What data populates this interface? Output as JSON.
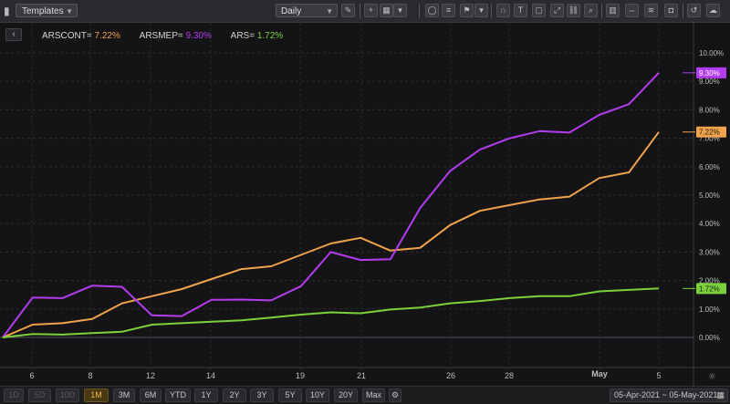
{
  "toolbar": {
    "templates_label": "Templates",
    "interval_label": "Daily",
    "tool_icons": [
      "pencil-icon",
      "crosshair-icon",
      "grid-icon",
      "chevron-down-icon",
      "circle-icon",
      "fib-icon",
      "flag-icon",
      "chevron-down-icon",
      "magnet-icon",
      "text-icon",
      "rect-icon",
      "expand-icon",
      "link-icon",
      "zoom-icon",
      "bar-chart-icon",
      "fit-icon",
      "indicator-icon",
      "camera-icon",
      "undo-icon",
      "cloud-icon"
    ]
  },
  "legend": [
    {
      "label": "ARSCONT=",
      "value": "7.22%",
      "color": "#f0a24a"
    },
    {
      "label": "ARSMEP=",
      "value": "9.30%",
      "color": "#b43cf0"
    },
    {
      "label": "ARS=",
      "value": "1.72%",
      "color": "#7ad13a"
    }
  ],
  "chart_data": {
    "type": "line",
    "x_ticks": [
      "6",
      "8",
      "12",
      "14",
      "19",
      "21",
      "26",
      "28",
      "May",
      "5"
    ],
    "y_ticks": [
      "0.00%",
      "1.00%",
      "2.00%",
      "3.00%",
      "4.00%",
      "5.00%",
      "6.00%",
      "7.00%",
      "8.00%",
      "9.00%",
      "10.00%"
    ],
    "ylim": [
      -0.5,
      10.5
    ],
    "series": [
      {
        "name": "ARSCONT=",
        "color": "#f0a24a",
        "last_label": "7.22%",
        "values": [
          0.0,
          0.45,
          0.5,
          0.65,
          1.2,
          1.45,
          1.7,
          2.05,
          2.4,
          2.5,
          2.9,
          3.3,
          3.5,
          3.05,
          3.15,
          3.95,
          4.45,
          4.65,
          4.85,
          4.95,
          5.6,
          5.8,
          7.22
        ]
      },
      {
        "name": "ARSMEP=",
        "color": "#b43cf0",
        "last_label": "9.30%",
        "values": [
          0.0,
          1.4,
          1.38,
          1.82,
          1.78,
          0.78,
          0.75,
          1.32,
          1.33,
          1.3,
          1.8,
          3.0,
          2.72,
          2.75,
          4.55,
          5.85,
          6.6,
          7.0,
          7.25,
          7.2,
          7.82,
          8.2,
          9.3
        ]
      },
      {
        "name": "ARS=",
        "color": "#7ad13a",
        "last_label": "1.72%",
        "values": [
          0.0,
          0.12,
          0.1,
          0.15,
          0.2,
          0.45,
          0.5,
          0.55,
          0.6,
          0.7,
          0.8,
          0.88,
          0.85,
          0.98,
          1.05,
          1.2,
          1.28,
          1.38,
          1.45,
          1.45,
          1.62,
          1.67,
          1.72
        ]
      }
    ]
  },
  "range_buttons": [
    {
      "label": "1D",
      "state": "disabled"
    },
    {
      "label": "5D",
      "state": "disabled"
    },
    {
      "label": "10D",
      "state": "disabled"
    },
    {
      "label": "1M",
      "state": "active"
    },
    {
      "label": "3M",
      "state": "normal"
    },
    {
      "label": "6M",
      "state": "normal"
    },
    {
      "label": "YTD",
      "state": "normal"
    },
    {
      "label": "1Y",
      "state": "normal"
    },
    {
      "label": "2Y",
      "state": "normal"
    },
    {
      "label": "3Y",
      "state": "normal"
    },
    {
      "label": "5Y",
      "state": "normal"
    },
    {
      "label": "10Y",
      "state": "normal"
    },
    {
      "label": "20Y",
      "state": "normal"
    },
    {
      "label": "Max",
      "state": "normal"
    }
  ],
  "date_range": {
    "start": "05-Apr-2021",
    "separator": "~",
    "end": "05-May-2021"
  }
}
